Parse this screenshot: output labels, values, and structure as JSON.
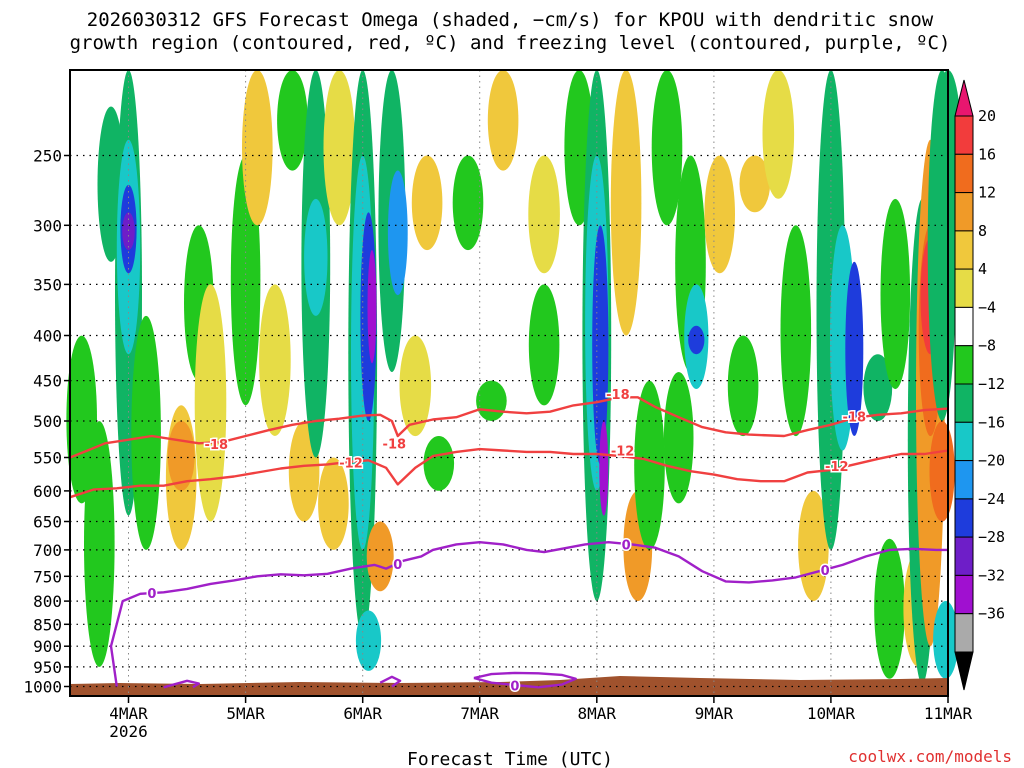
{
  "chart_data": {
    "type": "heatmap",
    "title_line1": "2026030312 GFS Forecast Omega (shaded, −cm/s) for KPOU with dendritic snow",
    "title_line2": "growth region (contoured, red, ºC) and freezing level (contoured, purple, ºC)",
    "xlabel": "Forecast Time (UTC)",
    "credit": "coolwx.com/models",
    "x_range_days": [
      3.5,
      11.0
    ],
    "x_ticks": [
      {
        "label": "4MAR",
        "day": 4,
        "sub": "2026"
      },
      {
        "label": "5MAR",
        "day": 5,
        "sub": ""
      },
      {
        "label": "6MAR",
        "day": 6,
        "sub": ""
      },
      {
        "label": "7MAR",
        "day": 7,
        "sub": ""
      },
      {
        "label": "8MAR",
        "day": 8,
        "sub": ""
      },
      {
        "label": "9MAR",
        "day": 9,
        "sub": ""
      },
      {
        "label": "10MAR",
        "day": 10,
        "sub": ""
      },
      {
        "label": "11MAR",
        "day": 11,
        "sub": ""
      }
    ],
    "y_range_hpa": [
      1025,
      200
    ],
    "y_ticks": [
      {
        "label": "250",
        "p": 250
      },
      {
        "label": "300",
        "p": 300
      },
      {
        "label": "350",
        "p": 350
      },
      {
        "label": "400",
        "p": 400
      },
      {
        "label": "450",
        "p": 450
      },
      {
        "label": "500",
        "p": 500
      },
      {
        "label": "550",
        "p": 550
      },
      {
        "label": "600",
        "p": 600
      },
      {
        "label": "650",
        "p": 650
      },
      {
        "label": "700",
        "p": 700
      },
      {
        "label": "750",
        "p": 750
      },
      {
        "label": "800",
        "p": 800
      },
      {
        "label": "850",
        "p": 850
      },
      {
        "label": "900",
        "p": 900
      },
      {
        "label": "950",
        "p": 950
      },
      {
        "label": "1000",
        "p": 1000
      }
    ],
    "colorbar": {
      "labels": [
        "20",
        "16",
        "12",
        "8",
        "4",
        "−4",
        "−8",
        "−12",
        "−16",
        "−20",
        "−24",
        "−28",
        "−32",
        "−36"
      ],
      "colors": [
        "#e8166f",
        "#f23c3c",
        "#f06c1e",
        "#f09a28",
        "#f0c83c",
        "#e6dc46",
        "#ffffff",
        "#22c81e",
        "#10b464",
        "#18c8c8",
        "#1e96f0",
        "#1e3cdc",
        "#6e1ec8",
        "#a010d0",
        "#aaaaaa",
        "#000000"
      ]
    },
    "omega_cells": [
      {
        "t": 3.85,
        "p1": 220,
        "p2": 330,
        "v": -10
      },
      {
        "t": 4.0,
        "p1": 200,
        "p2": 640,
        "v": -10
      },
      {
        "t": 4.0,
        "p1": 240,
        "p2": 420,
        "v": -14
      },
      {
        "t": 4.0,
        "p1": 270,
        "p2": 340,
        "v": -22
      },
      {
        "t": 4.0,
        "p1": 290,
        "p2": 320,
        "v": -26
      },
      {
        "t": 4.15,
        "p1": 380,
        "p2": 700,
        "v": -7
      },
      {
        "t": 3.75,
        "p1": 500,
        "p2": 950,
        "v": -6
      },
      {
        "t": 3.6,
        "p1": 400,
        "p2": 620,
        "v": -6
      },
      {
        "t": 4.45,
        "p1": 480,
        "p2": 700,
        "v": 6
      },
      {
        "t": 4.45,
        "p1": 500,
        "p2": 600,
        "v": 10
      },
      {
        "t": 4.6,
        "p1": 300,
        "p2": 450,
        "v": -7
      },
      {
        "t": 4.7,
        "p1": 350,
        "p2": 650,
        "v": 5
      },
      {
        "t": 5.0,
        "p1": 250,
        "p2": 480,
        "v": -7
      },
      {
        "t": 5.1,
        "p1": 200,
        "p2": 300,
        "v": 6
      },
      {
        "t": 5.25,
        "p1": 350,
        "p2": 520,
        "v": 5
      },
      {
        "t": 5.4,
        "p1": 200,
        "p2": 260,
        "v": -6
      },
      {
        "t": 5.5,
        "p1": 500,
        "p2": 650,
        "v": 6
      },
      {
        "t": 5.6,
        "p1": 200,
        "p2": 550,
        "v": -8
      },
      {
        "t": 5.6,
        "p1": 280,
        "p2": 380,
        "v": -14
      },
      {
        "t": 5.75,
        "p1": 550,
        "p2": 700,
        "v": 6
      },
      {
        "t": 5.8,
        "p1": 200,
        "p2": 300,
        "v": 5
      },
      {
        "t": 6.0,
        "p1": 200,
        "p2": 880,
        "v": -8
      },
      {
        "t": 6.0,
        "p1": 250,
        "p2": 700,
        "v": -14
      },
      {
        "t": 6.05,
        "p1": 290,
        "p2": 500,
        "v": -22
      },
      {
        "t": 6.08,
        "p1": 320,
        "p2": 430,
        "v": -30
      },
      {
        "t": 6.25,
        "p1": 200,
        "p2": 440,
        "v": -10
      },
      {
        "t": 6.3,
        "p1": 260,
        "p2": 360,
        "v": -18
      },
      {
        "t": 6.05,
        "p1": 820,
        "p2": 960,
        "v": -12
      },
      {
        "t": 6.15,
        "p1": 650,
        "p2": 780,
        "v": 10
      },
      {
        "t": 6.45,
        "p1": 400,
        "p2": 520,
        "v": 5
      },
      {
        "t": 6.55,
        "p1": 250,
        "p2": 320,
        "v": 6
      },
      {
        "t": 6.65,
        "p1": 520,
        "p2": 600,
        "v": -6
      },
      {
        "t": 6.9,
        "p1": 250,
        "p2": 320,
        "v": -6
      },
      {
        "t": 7.1,
        "p1": 450,
        "p2": 500,
        "v": -6
      },
      {
        "t": 7.2,
        "p1": 200,
        "p2": 260,
        "v": 6
      },
      {
        "t": 7.55,
        "p1": 350,
        "p2": 480,
        "v": -6
      },
      {
        "t": 7.55,
        "p1": 250,
        "p2": 340,
        "v": 5
      },
      {
        "t": 7.85,
        "p1": 200,
        "p2": 300,
        "v": -7
      },
      {
        "t": 8.0,
        "p1": 200,
        "p2": 800,
        "v": -8
      },
      {
        "t": 8.0,
        "p1": 250,
        "p2": 600,
        "v": -14
      },
      {
        "t": 8.03,
        "p1": 300,
        "p2": 560,
        "v": -22
      },
      {
        "t": 8.06,
        "p1": 500,
        "p2": 640,
        "v": -30
      },
      {
        "t": 8.25,
        "p1": 200,
        "p2": 400,
        "v": 6
      },
      {
        "t": 8.35,
        "p1": 600,
        "p2": 800,
        "v": 8
      },
      {
        "t": 8.45,
        "p1": 450,
        "p2": 700,
        "v": -6
      },
      {
        "t": 8.6,
        "p1": 200,
        "p2": 300,
        "v": -6
      },
      {
        "t": 8.7,
        "p1": 440,
        "p2": 620,
        "v": -7
      },
      {
        "t": 8.8,
        "p1": 250,
        "p2": 440,
        "v": -6
      },
      {
        "t": 8.85,
        "p1": 350,
        "p2": 460,
        "v": -13
      },
      {
        "t": 8.85,
        "p1": 390,
        "p2": 420,
        "v": -22
      },
      {
        "t": 9.05,
        "p1": 250,
        "p2": 340,
        "v": 6
      },
      {
        "t": 9.25,
        "p1": 400,
        "p2": 520,
        "v": -6
      },
      {
        "t": 9.35,
        "p1": 250,
        "p2": 290,
        "v": 6
      },
      {
        "t": 9.55,
        "p1": 200,
        "p2": 280,
        "v": 5
      },
      {
        "t": 9.7,
        "p1": 300,
        "p2": 520,
        "v": -6
      },
      {
        "t": 9.85,
        "p1": 600,
        "p2": 800,
        "v": 6
      },
      {
        "t": 10.0,
        "p1": 200,
        "p2": 700,
        "v": -8
      },
      {
        "t": 10.1,
        "p1": 300,
        "p2": 540,
        "v": -12
      },
      {
        "t": 10.2,
        "p1": 330,
        "p2": 520,
        "v": -20
      },
      {
        "t": 10.4,
        "p1": 420,
        "p2": 500,
        "v": -8
      },
      {
        "t": 10.5,
        "p1": 680,
        "p2": 980,
        "v": -6
      },
      {
        "t": 10.55,
        "p1": 280,
        "p2": 460,
        "v": -7
      },
      {
        "t": 10.75,
        "p1": 700,
        "p2": 950,
        "v": 6
      },
      {
        "t": 10.78,
        "p1": 280,
        "p2": 1000,
        "v": -8
      },
      {
        "t": 10.85,
        "p1": 240,
        "p2": 900,
        "v": 8
      },
      {
        "t": 10.85,
        "p1": 300,
        "p2": 520,
        "v": 14
      },
      {
        "t": 10.85,
        "p1": 310,
        "p2": 420,
        "v": 18
      },
      {
        "t": 10.95,
        "p1": 200,
        "p2": 500,
        "v": -8
      },
      {
        "t": 10.95,
        "p1": 500,
        "p2": 650,
        "v": 12
      },
      {
        "t": 10.98,
        "p1": 800,
        "p2": 980,
        "v": -12
      },
      {
        "t": 11.0,
        "p1": 200,
        "p2": 300,
        "v": -10
      }
    ],
    "contours": [
      {
        "level": "-18",
        "color": "#f04040",
        "pts": [
          [
            3.5,
            550
          ],
          [
            3.65,
            540
          ],
          [
            3.8,
            530
          ],
          [
            4.0,
            525
          ],
          [
            4.2,
            520
          ],
          [
            4.4,
            525
          ],
          [
            4.6,
            530
          ],
          [
            4.8,
            528
          ],
          [
            5.0,
            520
          ],
          [
            5.2,
            512
          ],
          [
            5.4,
            505
          ],
          [
            5.6,
            500
          ],
          [
            5.8,
            497
          ],
          [
            6.0,
            493
          ],
          [
            6.15,
            492
          ],
          [
            6.25,
            500
          ],
          [
            6.3,
            520
          ],
          [
            6.4,
            505
          ],
          [
            6.6,
            498
          ],
          [
            6.8,
            495
          ],
          [
            7.0,
            485
          ],
          [
            7.2,
            488
          ],
          [
            7.4,
            490
          ],
          [
            7.6,
            488
          ],
          [
            7.8,
            480
          ],
          [
            8.0,
            476
          ],
          [
            8.2,
            470
          ],
          [
            8.35,
            470
          ],
          [
            8.5,
            482
          ],
          [
            8.7,
            495
          ],
          [
            8.9,
            508
          ],
          [
            9.1,
            515
          ],
          [
            9.3,
            518
          ],
          [
            9.6,
            520
          ],
          [
            9.8,
            512
          ],
          [
            10.0,
            505
          ],
          [
            10.2,
            496
          ],
          [
            10.4,
            492
          ],
          [
            10.6,
            490
          ],
          [
            10.8,
            486
          ],
          [
            11.0,
            484
          ]
        ],
        "labels": [
          [
            4.75,
            531
          ],
          [
            6.27,
            530
          ],
          [
            8.18,
            466
          ],
          [
            10.2,
            494
          ]
        ]
      },
      {
        "level": "-12",
        "color": "#f04040",
        "pts": [
          [
            3.5,
            610
          ],
          [
            3.7,
            598
          ],
          [
            3.9,
            596
          ],
          [
            4.1,
            592
          ],
          [
            4.3,
            592
          ],
          [
            4.5,
            585
          ],
          [
            4.7,
            582
          ],
          [
            4.9,
            578
          ],
          [
            5.1,
            572
          ],
          [
            5.3,
            566
          ],
          [
            5.5,
            562
          ],
          [
            5.7,
            560
          ],
          [
            5.9,
            556
          ],
          [
            6.05,
            554
          ],
          [
            6.2,
            565
          ],
          [
            6.3,
            590
          ],
          [
            6.45,
            565
          ],
          [
            6.6,
            548
          ],
          [
            6.8,
            542
          ],
          [
            7.0,
            538
          ],
          [
            7.2,
            540
          ],
          [
            7.4,
            542
          ],
          [
            7.6,
            542
          ],
          [
            7.8,
            545
          ],
          [
            8.0,
            545
          ],
          [
            8.2,
            548
          ],
          [
            8.4,
            552
          ],
          [
            8.6,
            562
          ],
          [
            8.8,
            570
          ],
          [
            9.0,
            575
          ],
          [
            9.2,
            582
          ],
          [
            9.4,
            585
          ],
          [
            9.6,
            585
          ],
          [
            9.8,
            572
          ],
          [
            10.0,
            568
          ],
          [
            10.2,
            560
          ],
          [
            10.4,
            552
          ],
          [
            10.6,
            545
          ],
          [
            10.8,
            545
          ],
          [
            11.0,
            540
          ]
        ],
        "labels": [
          [
            5.9,
            557
          ],
          [
            8.22,
            540
          ],
          [
            10.05,
            562
          ]
        ]
      },
      {
        "level": "0",
        "color": "#a020c8",
        "pts": [
          [
            3.9,
            1000
          ],
          [
            3.85,
            900
          ],
          [
            3.95,
            800
          ],
          [
            4.1,
            785
          ],
          [
            4.3,
            782
          ],
          [
            4.5,
            775
          ],
          [
            4.7,
            765
          ],
          [
            4.9,
            758
          ],
          [
            5.1,
            750
          ],
          [
            5.3,
            746
          ],
          [
            5.5,
            748
          ],
          [
            5.7,
            745
          ],
          [
            5.9,
            735
          ],
          [
            6.1,
            728
          ],
          [
            6.2,
            735
          ],
          [
            6.35,
            720
          ],
          [
            6.5,
            712
          ],
          [
            6.6,
            700
          ],
          [
            6.8,
            690
          ],
          [
            7.0,
            686
          ],
          [
            7.2,
            690
          ],
          [
            7.4,
            700
          ],
          [
            7.55,
            704
          ],
          [
            7.7,
            698
          ],
          [
            7.9,
            690
          ],
          [
            8.1,
            686
          ],
          [
            8.3,
            690
          ],
          [
            8.5,
            696
          ],
          [
            8.7,
            712
          ],
          [
            8.9,
            740
          ],
          [
            9.1,
            760
          ],
          [
            9.3,
            762
          ],
          [
            9.5,
            758
          ],
          [
            9.7,
            752
          ],
          [
            9.9,
            740
          ],
          [
            10.1,
            728
          ],
          [
            10.3,
            712
          ],
          [
            10.5,
            700
          ],
          [
            10.7,
            698
          ],
          [
            10.9,
            700
          ],
          [
            11.0,
            700
          ]
        ],
        "labels": [
          [
            4.2,
            783
          ],
          [
            6.3,
            726
          ],
          [
            8.25,
            690
          ],
          [
            9.95,
            738
          ]
        ]
      },
      {
        "level": "0",
        "color": "#a020c8",
        "pts": [
          [
            6.95,
            978
          ],
          [
            7.1,
            968
          ],
          [
            7.3,
            965
          ],
          [
            7.5,
            966
          ],
          [
            7.7,
            970
          ],
          [
            7.82,
            980
          ],
          [
            7.7,
            995
          ],
          [
            7.5,
            1002
          ],
          [
            7.3,
            996
          ],
          [
            7.1,
            990
          ],
          [
            6.95,
            978
          ]
        ],
        "labels": [
          [
            7.3,
            997
          ]
        ]
      },
      {
        "level": "0",
        "color": "#a020c8",
        "pts": [
          [
            4.3,
            1002
          ],
          [
            4.5,
            985
          ],
          [
            4.6,
            992
          ],
          [
            4.55,
            1002
          ]
        ],
        "labels": []
      },
      {
        "level": "0",
        "color": "#a020c8",
        "pts": [
          [
            6.15,
            990
          ],
          [
            6.25,
            975
          ],
          [
            6.32,
            985
          ],
          [
            6.25,
            1000
          ]
        ],
        "labels": []
      }
    ]
  }
}
